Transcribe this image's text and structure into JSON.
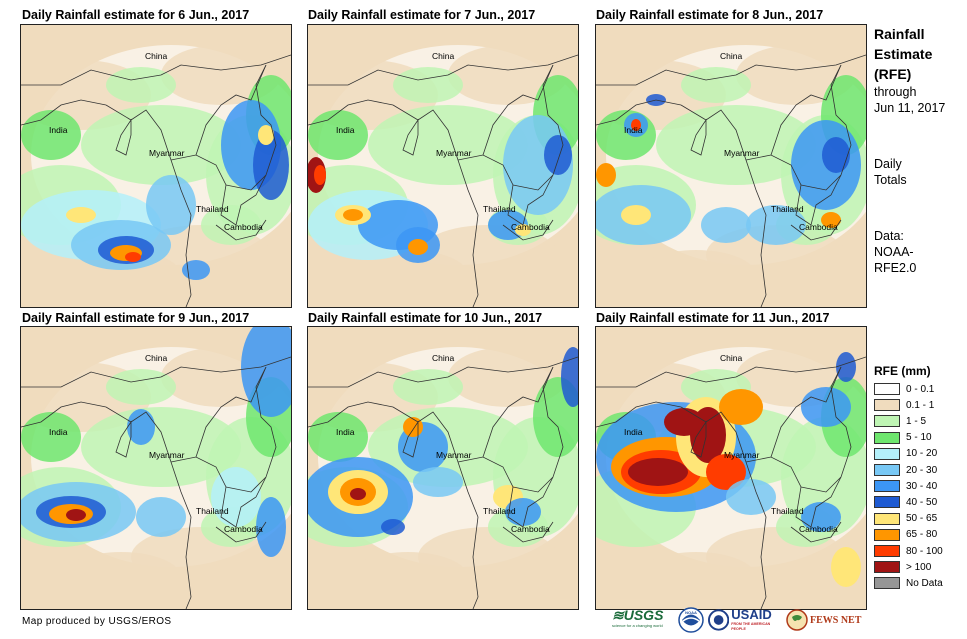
{
  "panels": [
    {
      "title": "Daily Rainfall estimate for 6 Jun., 2017"
    },
    {
      "title": "Daily Rainfall estimate for 7 Jun., 2017"
    },
    {
      "title": "Daily Rainfall estimate for 8 Jun., 2017"
    },
    {
      "title": "Daily Rainfall estimate for 9 Jun., 2017"
    },
    {
      "title": "Daily Rainfall estimate for 10 Jun., 2017"
    },
    {
      "title": "Daily Rainfall estimate for 11 Jun., 2017"
    }
  ],
  "map_labels": {
    "china": "China",
    "india": "India",
    "myanmar": "Myanmar",
    "thailand": "Thailand",
    "cambodia": "Cambodia"
  },
  "sidebar": {
    "title_line1": "Rainfall",
    "title_line2": "Estimate",
    "title_line3": "(RFE)",
    "through": "through",
    "date": "Jun 11, 2017",
    "daily1": "Daily",
    "daily2": "Totals",
    "data1": "Data:",
    "data2": "NOAA-",
    "data3": "RFE2.0"
  },
  "legend": {
    "title": "RFE (mm)",
    "items": [
      {
        "label": "0 - 0.1",
        "color": "#ffffff"
      },
      {
        "label": "0.1 - 1",
        "color": "#f0dcbe"
      },
      {
        "label": "1 - 5",
        "color": "#bff5b4"
      },
      {
        "label": "5 - 10",
        "color": "#6ee66e"
      },
      {
        "label": "10 - 20",
        "color": "#b4f0fa"
      },
      {
        "label": "20 - 30",
        "color": "#78c8f5"
      },
      {
        "label": "30 - 40",
        "color": "#3c96f5"
      },
      {
        "label": "40 - 50",
        "color": "#1e5ad2"
      },
      {
        "label": "50 - 65",
        "color": "#ffe678"
      },
      {
        "label": "65 - 80",
        "color": "#ff9600"
      },
      {
        "label": "80 - 100",
        "color": "#ff3c00"
      },
      {
        "label": "> 100",
        "color": "#a01414"
      },
      {
        "label": "No Data",
        "color": "#969696"
      }
    ]
  },
  "footer": {
    "credit": "Map produced by USGS/EROS",
    "usgs": "≋USGS",
    "usgs_tag": "science for a changing world",
    "noaa": "NOAA",
    "usaid": "USAID",
    "usaid_tag": "FROM THE AMERICAN PEOPLE",
    "fews": "FEWS NET"
  }
}
